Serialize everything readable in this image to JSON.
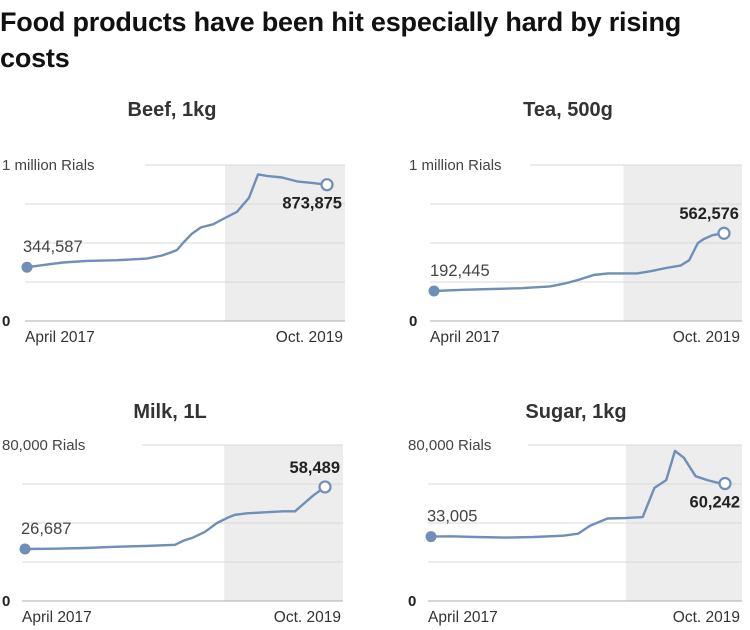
{
  "headline": "Food products have been hit especially hard by rising costs",
  "colors": {
    "line": "#6f8fb8",
    "shade": "#ededed",
    "grid": "#d9d9d9"
  },
  "chart_data": [
    {
      "type": "line",
      "title": "Beef, 1kg",
      "ylabel": "1 million Rials",
      "ymax_label": "1 million Rials",
      "zero_label": "0",
      "ylim": [
        0,
        1000000
      ],
      "yticks": [
        0,
        250000,
        500000,
        750000,
        1000000
      ],
      "x_start_label": "April 2017",
      "x_end_label": "Oct. 2019",
      "shaded_from": 0.625,
      "start_label": "344,587",
      "end_label": "873,875",
      "x": [
        0,
        0.06,
        0.12,
        0.2,
        0.3,
        0.4,
        0.45,
        0.48,
        0.5,
        0.52,
        0.55,
        0.58,
        0.62,
        0.66,
        0.7,
        0.74,
        0.77,
        0.8,
        0.85,
        0.9,
        0.95,
        1.0
      ],
      "values": [
        344587,
        360000,
        375000,
        385000,
        390000,
        400000,
        420000,
        440000,
        455000,
        500000,
        560000,
        600000,
        620000,
        660000,
        700000,
        790000,
        940000,
        930000,
        920000,
        895000,
        885000,
        873875
      ]
    },
    {
      "type": "line",
      "title": "Tea, 500g",
      "ylabel": "1 million Rials",
      "ymax_label": "1 million Rials",
      "zero_label": "0",
      "ylim": [
        0,
        1000000
      ],
      "yticks": [
        0,
        250000,
        500000,
        750000,
        1000000
      ],
      "x_start_label": "April 2017",
      "x_end_label": "Oct. 2019",
      "shaded_from": 0.62,
      "start_label": "192,445",
      "end_label": "562,576",
      "x": [
        0,
        0.1,
        0.2,
        0.3,
        0.4,
        0.45,
        0.5,
        0.55,
        0.6,
        0.65,
        0.7,
        0.75,
        0.8,
        0.85,
        0.88,
        0.91,
        0.93,
        0.96,
        1.0
      ],
      "values": [
        192445,
        200000,
        205000,
        210000,
        222000,
        240000,
        265000,
        295000,
        305000,
        305000,
        305000,
        320000,
        340000,
        355000,
        390000,
        500000,
        525000,
        550000,
        562576
      ]
    },
    {
      "type": "line",
      "title": "Milk, 1L",
      "ylabel": "80,000 Rials",
      "ymax_label": "80,000 Rials",
      "zero_label": "0",
      "ylim": [
        0,
        80000
      ],
      "yticks": [
        0,
        20000,
        40000,
        60000,
        80000
      ],
      "x_start_label": "April 2017",
      "x_end_label": "Oct. 2019",
      "shaded_from": 0.63,
      "start_label": "26,687",
      "end_label": "58,489",
      "x": [
        0,
        0.1,
        0.2,
        0.3,
        0.4,
        0.5,
        0.53,
        0.56,
        0.6,
        0.64,
        0.68,
        0.7,
        0.74,
        0.8,
        0.86,
        0.9,
        0.93,
        0.96,
        1.0
      ],
      "values": [
        26687,
        26800,
        27200,
        27800,
        28200,
        28800,
        31000,
        32500,
        35500,
        40000,
        43000,
        44200,
        45000,
        45500,
        46000,
        46000,
        50000,
        54000,
        58489
      ]
    },
    {
      "type": "line",
      "title": "Sugar, 1kg",
      "ylabel": "80,000 Rials",
      "ymax_label": "80,000 Rials",
      "zero_label": "0",
      "ylim": [
        0,
        80000
      ],
      "yticks": [
        0,
        20000,
        40000,
        60000,
        80000
      ],
      "x_start_label": "April 2017",
      "x_end_label": "Oct. 2019",
      "shaded_from": 0.63,
      "start_label": "33,005",
      "end_label": "60,242",
      "x": [
        0,
        0.07,
        0.15,
        0.25,
        0.35,
        0.45,
        0.5,
        0.54,
        0.6,
        0.66,
        0.72,
        0.76,
        0.8,
        0.83,
        0.86,
        0.9,
        0.94,
        0.97,
        1.0
      ],
      "values": [
        33005,
        33200,
        32800,
        32500,
        32800,
        33500,
        34500,
        38500,
        42300,
        42500,
        43000,
        58000,
        62000,
        77000,
        73500,
        64000,
        62000,
        60800,
        60242
      ]
    }
  ]
}
